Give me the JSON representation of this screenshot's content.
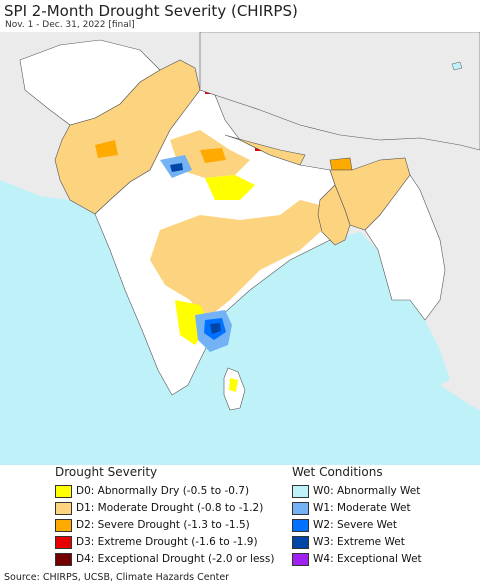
{
  "header": {
    "title": "SPI 2-Month Drought Severity (CHIRPS)",
    "subtitle": "Nov. 1 - Dec. 31, 2022 [final]"
  },
  "map": {
    "colors": {
      "ocean": "#bff1f8",
      "outside_land": "#ebebeb",
      "no_drought_land": "#ffffff",
      "boundary": "#555555"
    }
  },
  "legend": {
    "drought": {
      "title": "Drought Severity",
      "items": [
        {
          "label": "D0: Abnormally Dry (-0.5 to -0.7)",
          "color": "#ffff00"
        },
        {
          "label": "D1: Moderate Drought (-0.8 to -1.2)",
          "color": "#fcd37f"
        },
        {
          "label": "D2: Severe Drought (-1.3 to -1.5)",
          "color": "#ffaa00"
        },
        {
          "label": "D3: Extreme Drought (-1.6 to -1.9)",
          "color": "#e60000"
        },
        {
          "label": "D4: Exceptional Drought (-2.0 or less)",
          "color": "#730000"
        }
      ]
    },
    "wet": {
      "title": "Wet Conditions",
      "items": [
        {
          "label": "W0: Abnormally Wet",
          "color": "#bff1f8"
        },
        {
          "label": "W1: Moderate Wet",
          "color": "#73b2f5"
        },
        {
          "label": "W2: Severe Wet",
          "color": "#0072ff"
        },
        {
          "label": "W3: Extreme Wet",
          "color": "#0045a8"
        },
        {
          "label": "W4: Exceptional Wet",
          "color": "#a020f0"
        }
      ]
    }
  },
  "footer": {
    "source": "Source: CHIRPS, UCSB, Climate Hazards Center"
  }
}
